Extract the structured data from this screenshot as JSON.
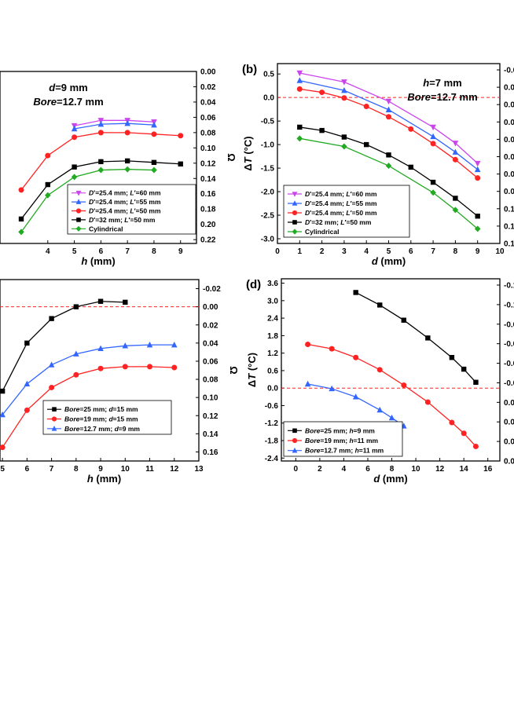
{
  "chart_data": [
    {
      "id": "a",
      "type": "line",
      "annotations": [
        "d=9 mm",
        "Bore=12.7 mm"
      ],
      "xlabel": "h (mm)",
      "ylabel_right": "Ω",
      "x_ticks": [
        "4",
        "5",
        "6",
        "7",
        "8",
        "9"
      ],
      "yr_ticks": [
        "0.00",
        "0.02",
        "0.04",
        "0.06",
        "0.08",
        "0.10",
        "0.12",
        "0.14",
        "0.16",
        "0.18",
        "0.20",
        "0.22"
      ],
      "xlim": [
        2.2,
        9.6
      ],
      "ylim_right": [
        0.0,
        0.225
      ],
      "right_axis_inverted": true,
      "series": [
        {
          "name": "D'=25.4 mm; L'=60 mm",
          "color": "#cc44ee",
          "marker": "tri_down",
          "x": [
            5,
            6,
            7,
            8
          ],
          "y": [
            0.071,
            0.064,
            0.064,
            0.066
          ]
        },
        {
          "name": "D'=25.4 mm; L'=55 mm",
          "color": "#3366ff",
          "marker": "tri_up",
          "x": [
            5,
            6,
            7,
            8
          ],
          "y": [
            0.075,
            0.069,
            0.068,
            0.07
          ]
        },
        {
          "name": "D'=25.4 mm; L'=50 mm",
          "color": "#ff2222",
          "marker": "circle",
          "x": [
            3,
            4,
            5,
            6,
            7,
            8,
            9
          ],
          "y": [
            0.155,
            0.11,
            0.086,
            0.08,
            0.08,
            0.082,
            0.084
          ]
        },
        {
          "name": "D'=32 mm; L'=50 mm",
          "color": "#000000",
          "marker": "square",
          "x": [
            3,
            4,
            5,
            6,
            7,
            8,
            9
          ],
          "y": [
            0.193,
            0.148,
            0.125,
            0.118,
            0.117,
            0.119,
            0.121
          ]
        },
        {
          "name": "Cylindrical",
          "color": "#22aa22",
          "marker": "diamond",
          "x": [
            3,
            4,
            5,
            6,
            7,
            8
          ],
          "y": [
            0.21,
            0.162,
            0.138,
            0.129,
            0.128,
            0.129
          ]
        }
      ]
    },
    {
      "id": "b",
      "type": "line",
      "panel_label": "(b)",
      "annotations": [
        "h=7 mm",
        "Bore=12.7 mm"
      ],
      "xlabel": "d (mm)",
      "ylabel": "ΔT (°C)",
      "x_ticks": [
        "0",
        "1",
        "2",
        "3",
        "4",
        "5",
        "6",
        "7",
        "8",
        "9",
        "10"
      ],
      "y_ticks": [
        "0.5",
        "0.0",
        "-0.5",
        "-1.0",
        "-1.5",
        "-2.0",
        "-2.5",
        "-3.0"
      ],
      "yr_ticks": [
        "-0.0",
        "0.0",
        "0.0",
        "0.0",
        "0.0",
        "0.0",
        "0.0",
        "0.0",
        "0.1",
        "0.1",
        "0.1"
      ],
      "xlim": [
        0,
        10
      ],
      "ylim": [
        -3.1,
        0.72
      ],
      "series": [
        {
          "name": "D'=25.4 mm; L'=60 mm",
          "color": "#cc44ee",
          "marker": "tri_down",
          "x": [
            1,
            3,
            5,
            7,
            8,
            9
          ],
          "y": [
            0.52,
            0.33,
            -0.08,
            -0.63,
            -0.97,
            -1.4
          ]
        },
        {
          "name": "D'=25.4 mm; L'=55 mm",
          "color": "#3366ff",
          "marker": "tri_up",
          "x": [
            1,
            3,
            5,
            7,
            8,
            9
          ],
          "y": [
            0.36,
            0.15,
            -0.26,
            -0.83,
            -1.16,
            -1.53
          ]
        },
        {
          "name": "D'=25.4 mm; L'=50 mm",
          "color": "#ff2222",
          "marker": "circle",
          "x": [
            1,
            2,
            3,
            4,
            5,
            6,
            7,
            8,
            9
          ],
          "y": [
            0.18,
            0.11,
            -0.01,
            -0.19,
            -0.41,
            -0.67,
            -0.98,
            -1.32,
            -1.71
          ]
        },
        {
          "name": "D'=32 mm; L'=50 mm",
          "color": "#000000",
          "marker": "square",
          "x": [
            1,
            2,
            3,
            4,
            5,
            6,
            7,
            8,
            9
          ],
          "y": [
            -0.63,
            -0.7,
            -0.84,
            -1.0,
            -1.22,
            -1.48,
            -1.8,
            -2.14,
            -2.52
          ]
        },
        {
          "name": "Cylindrical",
          "color": "#22aa22",
          "marker": "diamond",
          "x": [
            1,
            3,
            5,
            7,
            8,
            9
          ],
          "y": [
            -0.87,
            -1.04,
            -1.45,
            -2.02,
            -2.39,
            -2.79
          ]
        }
      ]
    },
    {
      "id": "c",
      "type": "line",
      "xlabel": "h (mm)",
      "ylabel_right": "Ω",
      "x_ticks": [
        "5",
        "6",
        "7",
        "8",
        "9",
        "10",
        "11",
        "12",
        "13"
      ],
      "yr_ticks": [
        "-0.02",
        "0.00",
        "0.02",
        "0.04",
        "0.06",
        "0.08",
        "0.10",
        "0.12",
        "0.14",
        "0.16"
      ],
      "xlim": [
        4.9,
        13.0
      ],
      "ylim_right": [
        -0.03,
        0.17
      ],
      "right_axis_inverted": true,
      "series": [
        {
          "name": "Bore=25 mm; d=15 mm",
          "color": "#000000",
          "marker": "square",
          "x": [
            5,
            6,
            7,
            8,
            9,
            10
          ],
          "y": [
            0.093,
            0.04,
            0.013,
            0.0,
            -0.006,
            -0.005
          ]
        },
        {
          "name": "Bore=19 mm; d=15 mm",
          "color": "#ff2222",
          "marker": "circle",
          "x": [
            5,
            6,
            7,
            8,
            9,
            10,
            11,
            12
          ],
          "y": [
            0.155,
            0.114,
            0.089,
            0.075,
            0.068,
            0.066,
            0.066,
            0.067
          ]
        },
        {
          "name": "Bore=12.7 mm; d=9 mm",
          "color": "#3366ff",
          "marker": "tri_up",
          "x": [
            5,
            6,
            7,
            8,
            9,
            10,
            11,
            12
          ],
          "y": [
            0.119,
            0.085,
            0.064,
            0.052,
            0.046,
            0.043,
            0.042,
            0.042
          ]
        }
      ]
    },
    {
      "id": "d",
      "type": "line",
      "panel_label": "(d)",
      "xlabel": "d (mm)",
      "ylabel": "ΔT (°C)",
      "x_ticks": [
        "0",
        "2",
        "4",
        "6",
        "8",
        "10",
        "12",
        "14",
        "16"
      ],
      "y_ticks": [
        "3.6",
        "3.0",
        "2.4",
        "1.8",
        "1.2",
        "0.6",
        "0.0",
        "-0.6",
        "-1.2",
        "-1.8",
        "-2.4"
      ],
      "yr_ticks": [
        "-0.1",
        "-0.1",
        "-0.0",
        "-0.0",
        "-0.0",
        "-0.0",
        "0.0",
        "0.0",
        "0.0",
        "0.0"
      ],
      "xlim": [
        -1.2,
        17.0
      ],
      "ylim": [
        -2.5,
        3.75
      ],
      "series": [
        {
          "name": "Bore=25 mm; h=9 mm",
          "color": "#000000",
          "marker": "square",
          "x": [
            5,
            7,
            9,
            11,
            13,
            14,
            15
          ],
          "y": [
            3.28,
            2.85,
            2.33,
            1.72,
            1.05,
            0.65,
            0.2
          ]
        },
        {
          "name": "Bore=19 mm; h=11 mm",
          "color": "#ff2222",
          "marker": "circle",
          "x": [
            1,
            3,
            5,
            7,
            9,
            11,
            13,
            14,
            15
          ],
          "y": [
            1.5,
            1.35,
            1.05,
            0.63,
            0.1,
            -0.48,
            -1.18,
            -1.55,
            -2.0
          ]
        },
        {
          "name": "Bore=12.7 mm; h=11 mm",
          "color": "#3366ff",
          "marker": "tri_up",
          "x": [
            1,
            3,
            5,
            7,
            8,
            9
          ],
          "y": [
            0.14,
            -0.02,
            -0.3,
            -0.75,
            -1.02,
            -1.3
          ]
        }
      ]
    }
  ]
}
